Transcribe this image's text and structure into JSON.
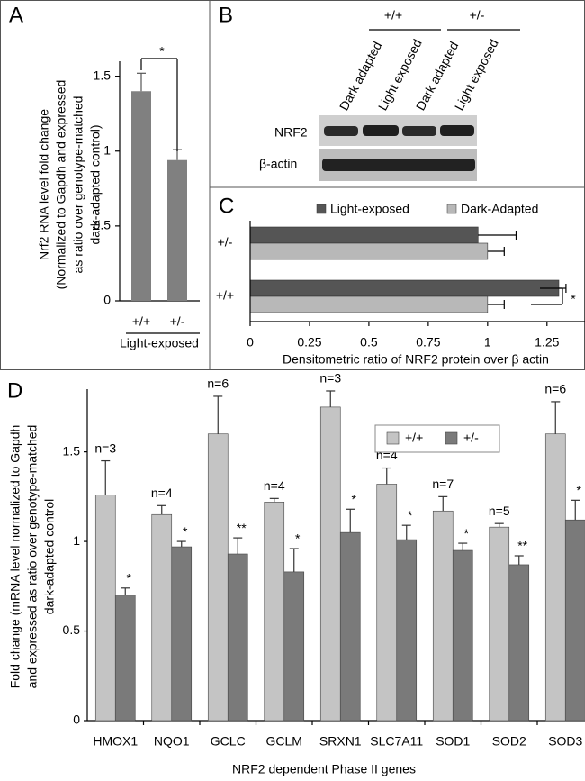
{
  "panel_labels": [
    "A",
    "B",
    "C",
    "D"
  ],
  "blot": {
    "genotypes": [
      "+/+",
      "+/-"
    ],
    "lanes": [
      "Dark adapted",
      "Light exposed",
      "Dark adapted",
      "Light exposed"
    ],
    "rows": [
      "NRF2",
      "β-actin"
    ]
  },
  "chart_data": [
    {
      "type": "bar",
      "ylabel": [
        "Nrf2 RNA level fold change",
        "(Normalized to Gapdh and expressed",
        "as ratio over genotype-matched",
        "dark-adapted control)"
      ],
      "categories": [
        "+/+",
        "+/-"
      ],
      "xlabel": "Light-exposed",
      "values": [
        1.4,
        0.94
      ],
      "errors": [
        0.12,
        0.07
      ],
      "color": "#808080",
      "ylim": [
        0,
        1.6
      ],
      "yticks": [
        0,
        0.5,
        1,
        1.5
      ],
      "significance": "*"
    },
    {
      "type": "hbar",
      "categories": [
        "+/-",
        "+/+"
      ],
      "series": [
        {
          "name": "Light-exposed",
          "color": "#555555",
          "values": [
            0.96,
            1.3
          ],
          "errors": [
            0.16,
            0.03
          ]
        },
        {
          "name": "Dark-Adapted",
          "color": "#b8b8b8",
          "values": [
            1.0,
            1.0
          ],
          "errors": [
            0.07,
            0.07
          ]
        }
      ],
      "xlabel": "Densitometric ratio of NRF2 protein over β actin",
      "xlim": [
        0,
        1.41
      ],
      "xticks": [
        0,
        0.25,
        0.5,
        0.75,
        1,
        1.25
      ],
      "significance": "*"
    },
    {
      "type": "grouped-bar",
      "ylabel": [
        "Fold change (mRNA level normalized to Gapdh",
        "and expressed as ratio over genotype-matched",
        "dark-adapted control"
      ],
      "xlabel": "NRF2 dependent Phase II genes",
      "categories": [
        "HMOX1",
        "NQO1",
        "GCLC",
        "GCLM",
        "SRXN1",
        "SLC7A11",
        "SOD1",
        "SOD2",
        "SOD3"
      ],
      "series": [
        {
          "name": "+/+",
          "color": "#c4c4c4",
          "values": [
            1.26,
            1.15,
            1.6,
            1.22,
            1.75,
            1.32,
            1.17,
            1.08,
            1.6
          ],
          "errors": [
            0.19,
            0.05,
            0.21,
            0.02,
            0.09,
            0.09,
            0.08,
            0.02,
            0.18
          ],
          "annotations": [
            "n=3",
            "n=4",
            "n=6",
            "n=4",
            "n=3",
            "n=4",
            "n=7",
            "n=5",
            "n=6"
          ]
        },
        {
          "name": "+/-",
          "color": "#7a7a7a",
          "values": [
            0.7,
            0.97,
            0.93,
            0.83,
            1.05,
            1.01,
            0.95,
            0.87,
            1.12
          ],
          "errors": [
            0.04,
            0.03,
            0.09,
            0.13,
            0.13,
            0.08,
            0.04,
            0.05,
            0.11
          ],
          "annotations": [
            "*",
            "*",
            "**",
            "*",
            "*",
            "*",
            "*",
            "**",
            "*"
          ]
        }
      ],
      "ylim": [
        0,
        1.85
      ],
      "yticks": [
        0,
        0.5,
        1,
        1.5
      ],
      "legend": "top-right"
    }
  ]
}
